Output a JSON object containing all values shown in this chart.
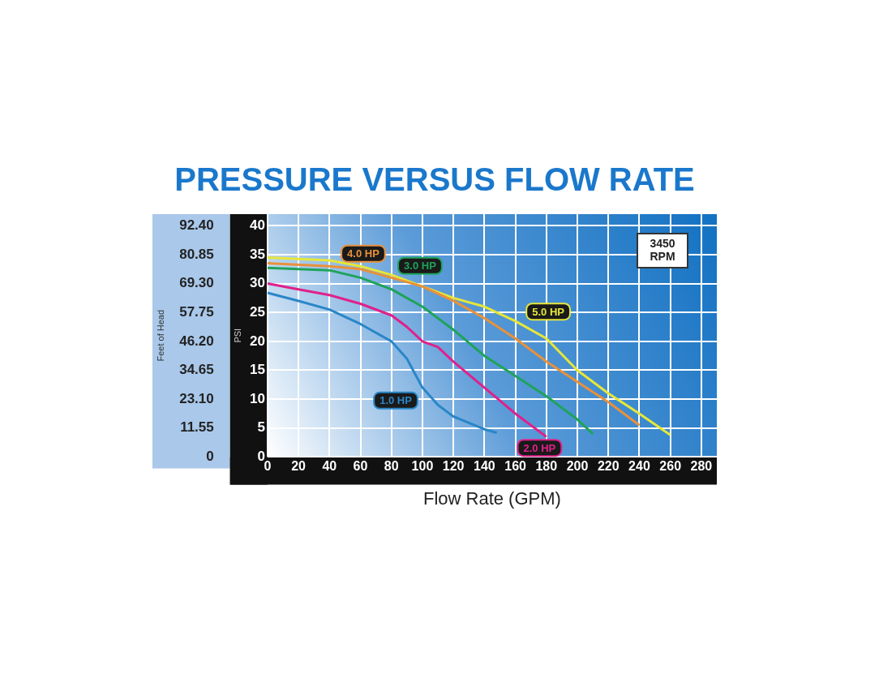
{
  "chart_data": {
    "type": "line",
    "title": "PRESSURE VERSUS FLOW RATE",
    "xlabel": "Flow Rate (GPM)",
    "ylabel": "PSI",
    "y2label": "Feet of Head",
    "annotations": [
      "3450 RPM"
    ],
    "xlim": [
      0,
      290
    ],
    "xticks": [
      0,
      20,
      40,
      60,
      80,
      100,
      120,
      140,
      160,
      180,
      200,
      220,
      240,
      260,
      280
    ],
    "ylim": [
      0,
      42
    ],
    "yticks": [
      0,
      5,
      10,
      15,
      20,
      25,
      30,
      35,
      40
    ],
    "y2lim": [
      0,
      97.02
    ],
    "y2ticks": [
      0,
      11.55,
      {
        "value": 23.1,
        "label": "23.10"
      },
      34.65,
      {
        "value": 46.2,
        "label": "46.20"
      },
      57.75,
      {
        "value": 69.3,
        "label": "69.30"
      },
      80.85,
      {
        "value": 92.4,
        "label": "92.40"
      }
    ],
    "grid": true,
    "legend": false,
    "marker": "none",
    "line_style": "solid",
    "series": [
      {
        "name": "1.0 HP",
        "color": "#2a86c8",
        "x": [
          0,
          20,
          40,
          60,
          80,
          90,
          100,
          110,
          120,
          140,
          148
        ],
        "values": [
          28.4,
          27,
          25.5,
          23,
          20,
          17,
          12,
          9,
          7,
          4.8,
          4.2
        ]
      },
      {
        "name": "2.0 HP",
        "color": "#e0218a",
        "x": [
          0,
          20,
          40,
          60,
          80,
          90,
          100,
          110,
          120,
          140,
          160,
          180
        ],
        "values": [
          30,
          29,
          28,
          26.5,
          24.5,
          22.5,
          20,
          19,
          16.5,
          12,
          7.5,
          3.5
        ]
      },
      {
        "name": "3.0 HP",
        "color": "#1fa35a",
        "x": [
          0,
          40,
          60,
          80,
          100,
          120,
          140,
          160,
          180,
          200,
          210
        ],
        "values": [
          32.7,
          32.3,
          31,
          29,
          26,
          22,
          17.5,
          14,
          10.5,
          6.5,
          4
        ]
      },
      {
        "name": "4.0 HP",
        "color": "#e8913a",
        "x": [
          0,
          40,
          60,
          80,
          100,
          120,
          140,
          160,
          180,
          200,
          220,
          240
        ],
        "values": [
          33.5,
          33,
          32.5,
          31,
          29.5,
          27,
          24,
          20.5,
          16.5,
          13,
          9.5,
          5.5
        ]
      },
      {
        "name": "5.0 HP",
        "color": "#e6e63a",
        "x": [
          0,
          40,
          60,
          80,
          100,
          120,
          140,
          160,
          180,
          200,
          220,
          240,
          260
        ],
        "values": [
          34.5,
          34,
          33,
          31.5,
          29.5,
          27.5,
          26,
          23.5,
          20.5,
          15,
          11,
          7.5,
          3.8
        ]
      }
    ]
  }
}
